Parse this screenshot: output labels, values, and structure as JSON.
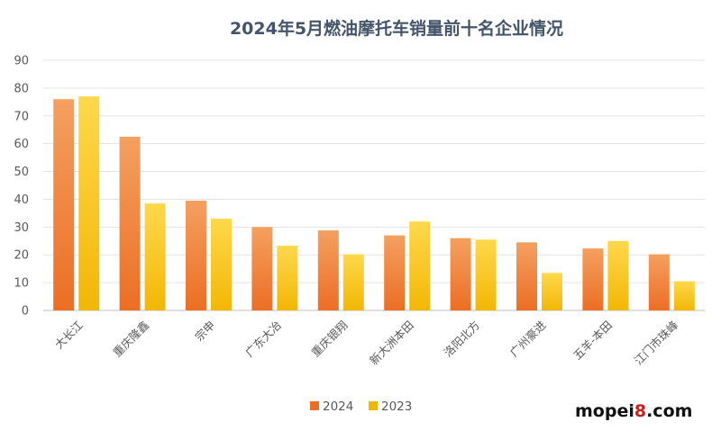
{
  "chart_data": {
    "type": "bar",
    "title": "2024年5月燃油摩托车销量前十名企业情况",
    "categories": [
      "大长江",
      "重庆隆鑫",
      "宗申",
      "广东大冶",
      "重庆银翔",
      "新大洲本田",
      "洛阳北方",
      "广州豪进",
      "五羊-本田",
      "江门市珠峰"
    ],
    "series": [
      {
        "name": "2024",
        "values": [
          76,
          62.5,
          39.5,
          30,
          28.8,
          27,
          26,
          24.5,
          22.3,
          20.2
        ],
        "color_top": "#f4a060",
        "color_bottom": "#ec6e24"
      },
      {
        "name": "2023",
        "values": [
          77,
          38.5,
          33,
          23.3,
          20.2,
          32,
          25.5,
          13.5,
          25,
          10.5
        ],
        "color_top": "#ffd84c",
        "color_bottom": "#f2b705"
      }
    ],
    "ylim": [
      0,
      90
    ],
    "yticks": [
      0,
      10,
      20,
      30,
      40,
      50,
      60,
      70,
      80,
      90
    ],
    "grid": true,
    "legend_position": "bottom"
  },
  "watermark": {
    "part1": "mopei",
    "part2": "8",
    "part3": ".com"
  }
}
